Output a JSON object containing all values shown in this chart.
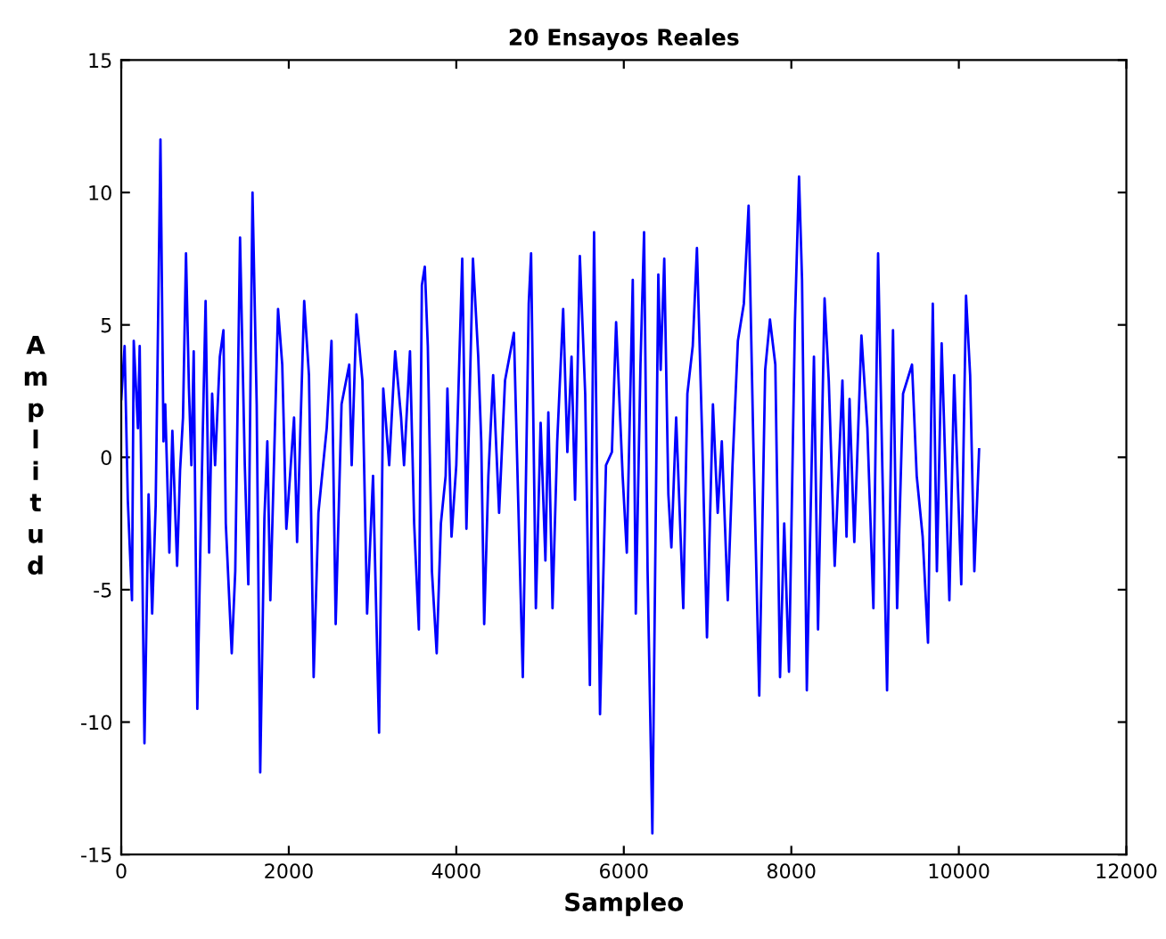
{
  "chart_data": {
    "type": "line",
    "title": "20 Ensayos Reales",
    "xlabel": "Sampleo",
    "ylabel": "Amplitud",
    "x": [
      0,
      40,
      78,
      128,
      149,
      199,
      220,
      277,
      326,
      369,
      411,
      468,
      504,
      525,
      574,
      610,
      667,
      702,
      737,
      773,
      808,
      837,
      865,
      908,
      950,
      1007,
      1049,
      1085,
      1120,
      1177,
      1220,
      1248,
      1319,
      1361,
      1418,
      1475,
      1517,
      1567,
      1617,
      1659,
      1709,
      1744,
      1780,
      1872,
      1922,
      1971,
      2063,
      2099,
      2184,
      2241,
      2297,
      2354,
      2453,
      2510,
      2560,
      2630,
      2722,
      2751,
      2808,
      2879,
      2935,
      3006,
      3078,
      3128,
      3199,
      3270,
      3341,
      3376,
      3447,
      3497,
      3553,
      3589,
      3624,
      3660,
      3709,
      3766,
      3816,
      3873,
      3894,
      3943,
      4000,
      4071,
      4121,
      4199,
      4262,
      4298,
      4333,
      4383,
      4440,
      4511,
      4582,
      4688,
      4737,
      4794,
      4865,
      4893,
      4950,
      5007,
      5064,
      5099,
      5149,
      5205,
      5276,
      5326,
      5376,
      5418,
      5475,
      5539,
      5595,
      5645,
      5716,
      5787,
      5858,
      5908,
      5986,
      6036,
      6107,
      6143,
      6199,
      6242,
      6284,
      6341,
      6412,
      6440,
      6483,
      6532,
      6568,
      6625,
      6710,
      6759,
      6823,
      6873,
      6937,
      6993,
      7064,
      7121,
      7170,
      7241,
      7298,
      7362,
      7433,
      7490,
      7546,
      7617,
      7688,
      7745,
      7809,
      7865,
      7915,
      7972,
      8043,
      8092,
      8128,
      8185,
      8270,
      8319,
      8397,
      8447,
      8518,
      8610,
      8659,
      8695,
      8752,
      8837,
      8908,
      8980,
      9036,
      9086,
      9143,
      9214,
      9263,
      9334,
      9441,
      9497,
      9568,
      9632,
      9689,
      9738,
      9795,
      9887,
      9944,
      10029,
      10086,
      10135,
      10185,
      10242
    ],
    "series": [
      {
        "color": "#0000ff",
        "values": [
          2.2,
          4.2,
          -1.6,
          -5.4,
          4.4,
          1.1,
          4.2,
          -10.8,
          -1.4,
          -5.9,
          -1.8,
          12,
          0.6,
          2,
          -3.6,
          1,
          -4.1,
          -0.5,
          1.5,
          7.7,
          2.6,
          -0.3,
          4,
          -9.5,
          -2.5,
          5.9,
          -3.6,
          2.4,
          -0.3,
          3.8,
          4.8,
          -2.5,
          -7.4,
          -4.3,
          8.3,
          -0.3,
          -4.8,
          10,
          2,
          -11.9,
          -2.3,
          0.6,
          -5.4,
          5.6,
          3.5,
          -2.7,
          1.5,
          -3.2,
          5.9,
          3.1,
          -8.3,
          -2.1,
          1.1,
          4.4,
          -6.3,
          2,
          3.5,
          -0.3,
          5.4,
          2.9,
          -5.9,
          -0.7,
          -10.4,
          2.6,
          -0.3,
          4,
          1.5,
          -0.3,
          4,
          -2.5,
          -6.5,
          6.5,
          7.2,
          4.2,
          -4.3,
          -7.4,
          -2.5,
          -0.7,
          2.6,
          -3,
          -0.3,
          7.5,
          -2.7,
          7.5,
          3.8,
          0.6,
          -6.3,
          -0.7,
          3.1,
          -2.1,
          2.9,
          4.7,
          -1.4,
          -8.3,
          5.8,
          7.7,
          -5.7,
          1.3,
          -3.9,
          1.7,
          -5.7,
          0.6,
          5.6,
          0.2,
          3.8,
          -1.6,
          7.6,
          2.4,
          -8.6,
          8.5,
          -9.7,
          -0.3,
          0.2,
          5.1,
          -0.7,
          -3.6,
          6.7,
          -5.9,
          3.5,
          8.5,
          -4.3,
          -14.2,
          6.9,
          3.3,
          7.5,
          -1.4,
          -3.4,
          1.5,
          -5.7,
          2.4,
          4.2,
          7.9,
          0.6,
          -6.8,
          2,
          -2.1,
          0.6,
          -5.4,
          -0.3,
          4.4,
          5.8,
          9.5,
          0.6,
          -9,
          3.3,
          5.2,
          3.5,
          -8.3,
          -2.5,
          -8.1,
          5.1,
          10.6,
          6.7,
          -8.8,
          3.8,
          -6.5,
          6,
          2.9,
          -4.1,
          2.9,
          -3,
          2.2,
          -3.2,
          4.6,
          1.1,
          -5.7,
          7.7,
          -0.3,
          -8.8,
          4.8,
          -5.7,
          2.4,
          3.5,
          -0.7,
          -3,
          -7,
          5.8,
          -4.3,
          4.3,
          -5.4,
          3.1,
          -4.8,
          6.1,
          3.1,
          -4.3,
          0.3
        ]
      }
    ],
    "xlim": [
      0,
      12000
    ],
    "xticks": [
      0,
      2000,
      4000,
      6000,
      8000,
      10000,
      12000
    ],
    "ylim": [
      -15,
      15
    ],
    "yticks": [
      -15,
      -10,
      -5,
      0,
      5,
      10,
      15
    ],
    "grid": false,
    "legend": false,
    "marker": "none",
    "line_style": "solid"
  }
}
